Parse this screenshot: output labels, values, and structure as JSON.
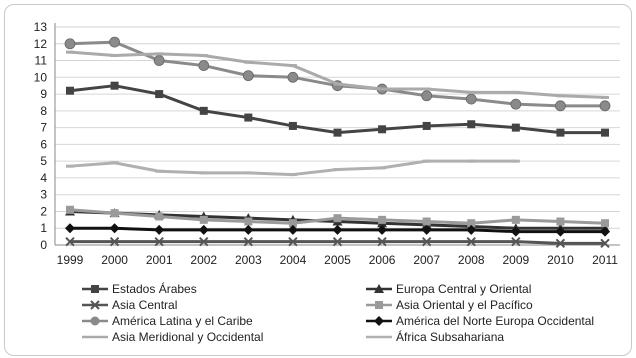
{
  "chart_data": {
    "type": "line",
    "title": "",
    "xlabel": "",
    "ylabel": "",
    "categories": [
      "1999",
      "2000",
      "2001",
      "2002",
      "2003",
      "2004",
      "2005",
      "2006",
      "2007",
      "2008",
      "2009",
      "2010",
      "2011"
    ],
    "ylim": [
      0,
      13
    ],
    "yticks": [
      0,
      1,
      2,
      3,
      4,
      5,
      6,
      7,
      8,
      9,
      10,
      11,
      12,
      13
    ],
    "grid": true,
    "legend_position": "bottom",
    "series": [
      {
        "name": "Estados Árabes",
        "color": "#444444",
        "marker": "square",
        "values": [
          9.2,
          9.5,
          9.0,
          8.0,
          7.6,
          7.1,
          6.7,
          6.9,
          7.1,
          7.2,
          7.0,
          6.7,
          6.7
        ]
      },
      {
        "name": "Europa Central y Oriental",
        "color": "#333333",
        "marker": "triangle",
        "values": [
          2.0,
          1.9,
          1.8,
          1.7,
          1.6,
          1.5,
          1.4,
          1.3,
          1.2,
          1.1,
          1.0,
          1.0,
          1.0
        ]
      },
      {
        "name": "Asia Central",
        "color": "#555555",
        "marker": "x",
        "values": [
          0.2,
          0.2,
          0.2,
          0.2,
          0.2,
          0.2,
          0.2,
          0.2,
          0.2,
          0.2,
          0.2,
          0.1,
          0.1
        ]
      },
      {
        "name": "Asia Oriental y el Pacífico",
        "color": "#9a9a9a",
        "marker": "square",
        "values": [
          2.1,
          1.9,
          1.7,
          1.5,
          1.4,
          1.3,
          1.6,
          1.5,
          1.4,
          1.3,
          1.5,
          1.4,
          1.3
        ]
      },
      {
        "name": "América Latina y el Caribe",
        "color": "#8a8a8a",
        "marker": "circle",
        "values": [
          12.0,
          12.1,
          11.0,
          10.7,
          10.1,
          10.0,
          9.5,
          9.3,
          8.9,
          8.7,
          8.4,
          8.3,
          8.3
        ]
      },
      {
        "name": "América del Norte Europa Occidental",
        "color": "#111111",
        "marker": "diamond",
        "values": [
          1.0,
          1.0,
          0.9,
          0.9,
          0.9,
          0.9,
          0.9,
          0.9,
          0.9,
          0.9,
          0.8,
          0.8,
          0.8
        ]
      },
      {
        "name": "Asia Meridional y Occidental",
        "color": "#aaaaaa",
        "marker": "dash",
        "values": [
          11.5,
          11.3,
          11.4,
          11.3,
          10.9,
          10.7,
          9.6,
          9.3,
          9.3,
          9.1,
          9.1,
          8.9,
          8.8
        ]
      },
      {
        "name": "África Subsahariana",
        "color": "#b0b0b0",
        "marker": "dash",
        "values": [
          4.7,
          4.9,
          4.4,
          4.3,
          4.3,
          4.2,
          4.5,
          4.6,
          5.0,
          5.0,
          5.0,
          null,
          null
        ]
      }
    ]
  }
}
